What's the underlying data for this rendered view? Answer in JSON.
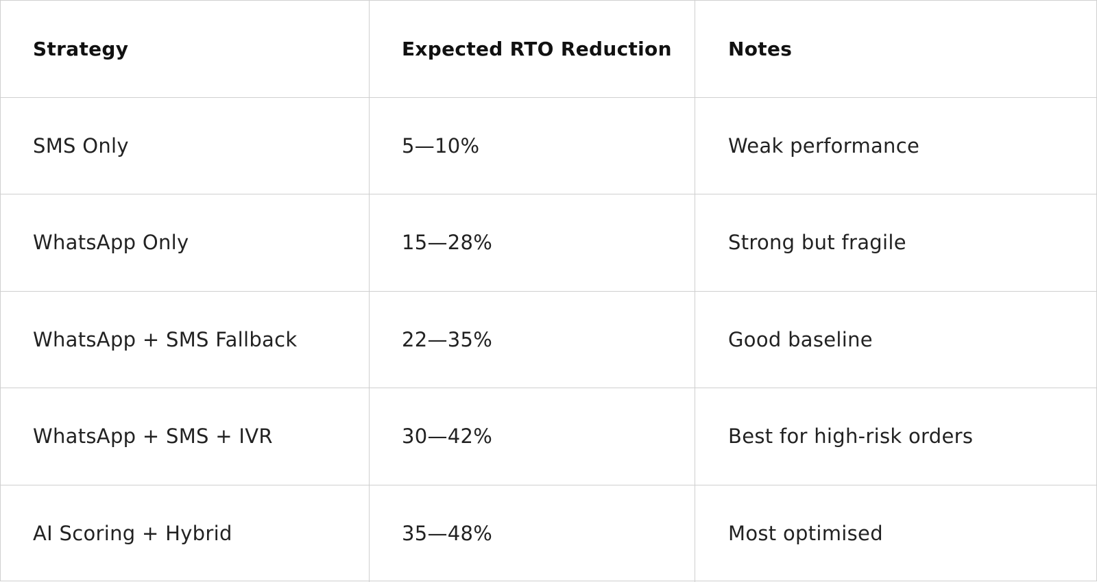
{
  "table": {
    "header": [
      "Strategy",
      "Expected RTO Reduction",
      "Notes"
    ],
    "rows": [
      [
        "SMS Only",
        "5—10%",
        "Weak performance"
      ],
      [
        "WhatsApp Only",
        "15—28%",
        "Strong but fragile"
      ],
      [
        "WhatsApp + SMS Fallback",
        "22—35%",
        "Good baseline"
      ],
      [
        "WhatsApp + SMS + IVR",
        "30—42%",
        "Best for high-risk orders"
      ],
      [
        "AI Scoring + Hybrid",
        "35—48%",
        "Most optimised"
      ]
    ]
  }
}
